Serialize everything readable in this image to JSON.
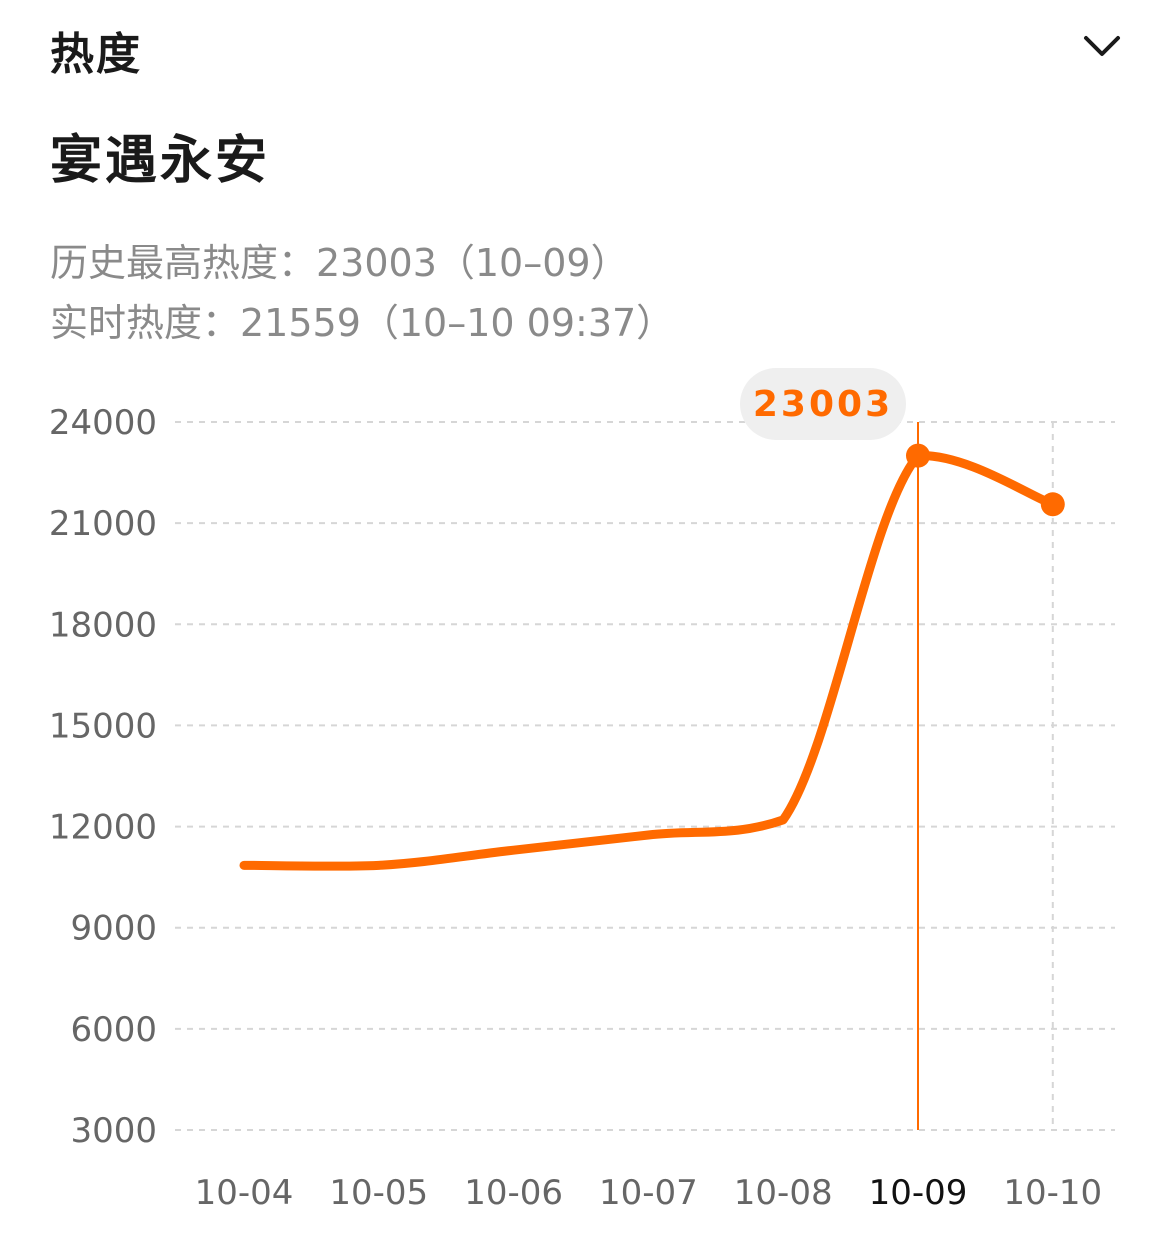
{
  "header": {
    "title": "热度",
    "toggle_icon": "chevron-down-icon"
  },
  "topic": {
    "title": "宴遇永安"
  },
  "stats": {
    "peak_text": "历史最高热度：23003（10–09）",
    "live_text": "实时热度：21559（10–10 09:37）"
  },
  "colors": {
    "accent": "#ff6a00",
    "grid": "#d6d6d6",
    "tooltip_bg": "#efefef"
  },
  "chart_data": {
    "type": "line",
    "categories": [
      "10-04",
      "10-05",
      "10-06",
      "10-07",
      "10-08",
      "10-09",
      "10-10"
    ],
    "series": [
      {
        "values": [
          10850,
          10850,
          11300,
          11750,
          12200,
          23003,
          21559
        ]
      }
    ],
    "yticks": [
      24000,
      21000,
      18000,
      15000,
      12000,
      9000,
      6000,
      3000
    ],
    "ylim": [
      3000,
      24000
    ],
    "grid": true,
    "highlight": {
      "category": "10-09",
      "value_label": "23003"
    }
  }
}
